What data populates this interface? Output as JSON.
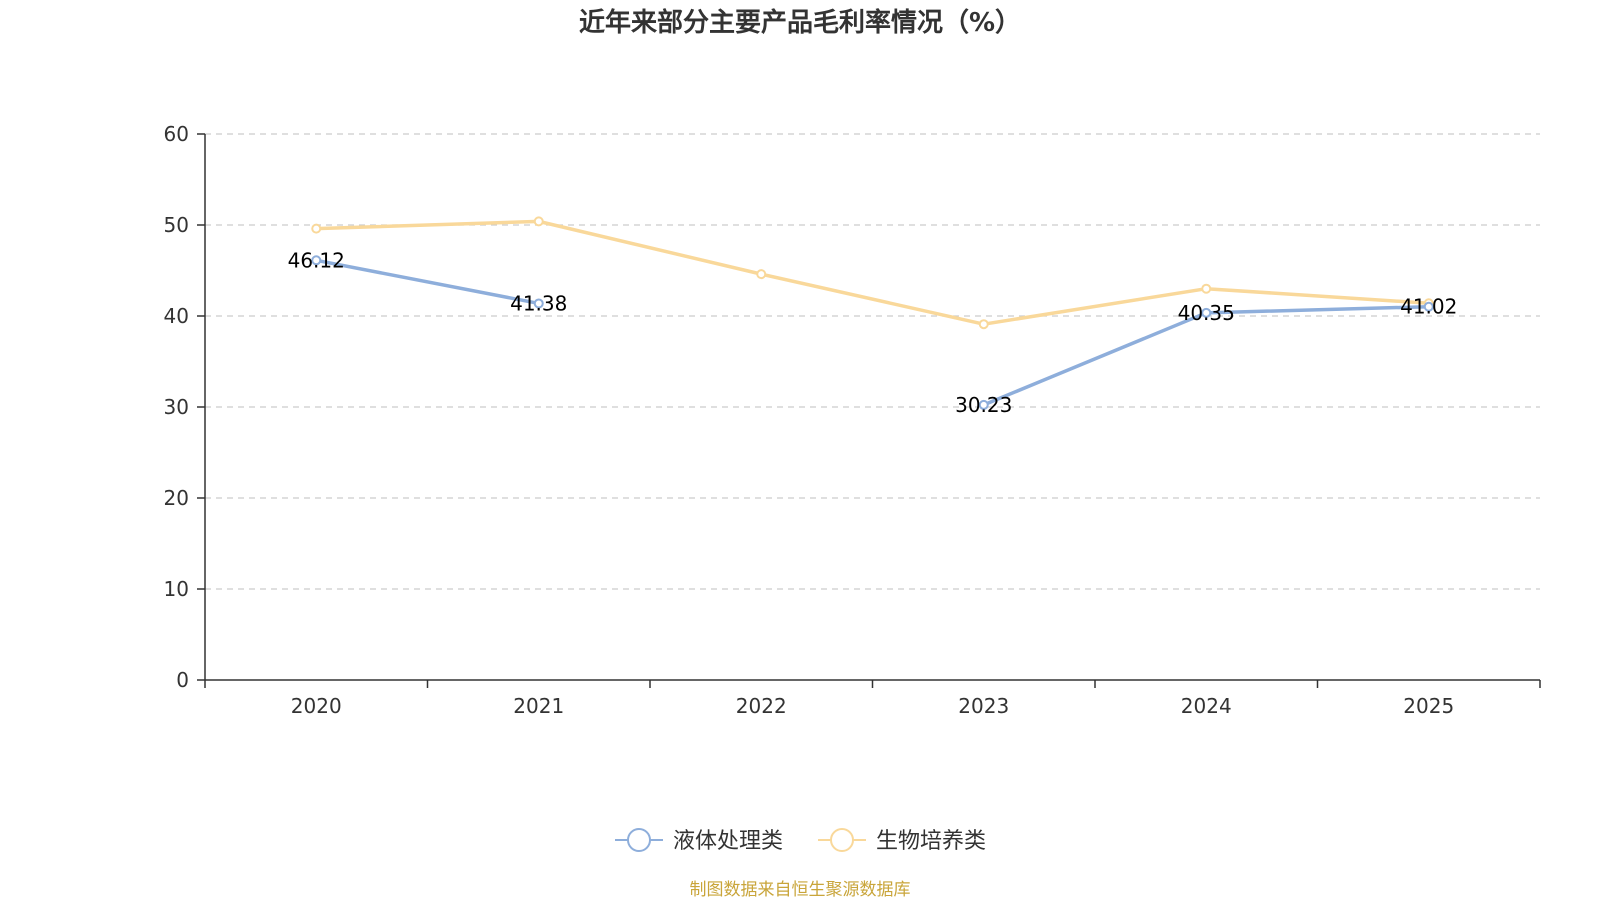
{
  "chart_data": {
    "type": "line",
    "title": "近年来部分主要产品毛利率情况（%）",
    "xlabel": "",
    "ylabel": "",
    "categories": [
      "2020",
      "2021",
      "2022",
      "2023",
      "2024",
      "2025"
    ],
    "ylim": [
      0,
      60
    ],
    "yticks": [
      "0",
      "10",
      "20",
      "30",
      "40",
      "50",
      "60"
    ],
    "grid": true,
    "legend_position": "bottom",
    "series": [
      {
        "name": "液体处理类",
        "color": "#8eaedb",
        "values": [
          46.12,
          41.38,
          null,
          30.23,
          40.35,
          41.02
        ],
        "labels": [
          "46.12",
          "41.38",
          "",
          "30.23",
          "40.35",
          "41.02"
        ]
      },
      {
        "name": "生物培养类",
        "color": "#f9d89a",
        "values": [
          49.6,
          50.4,
          44.6,
          39.1,
          43.0,
          41.4
        ],
        "labels": [
          "",
          "",
          "",
          "",
          "",
          ""
        ]
      }
    ]
  },
  "footer": {
    "source_text": "制图数据来自恒生聚源数据库",
    "source_color": "#c9a53a"
  }
}
